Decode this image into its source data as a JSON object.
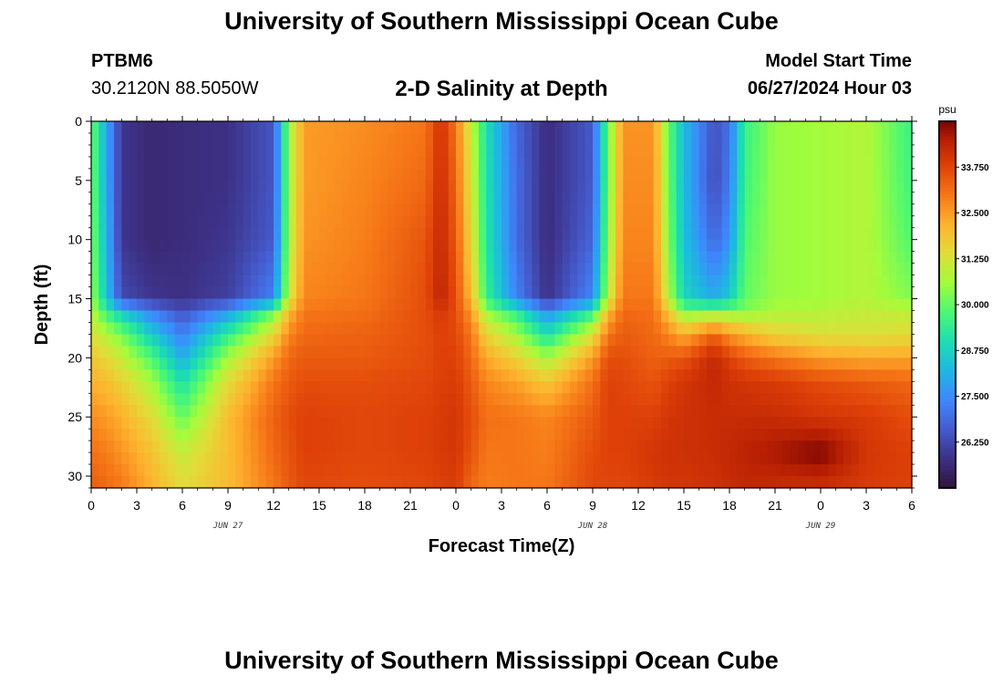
{
  "header": {
    "title": "University of Southern Mississippi Ocean Cube",
    "station_id": "PTBM6",
    "station_coords": "30.2120N  88.5050W",
    "chart_title": "2-D Salinity at Depth",
    "start_label": "Model Start Time",
    "start_value": "06/27/2024 Hour 03"
  },
  "footer": {
    "title": "University of Southern Mississippi Ocean Cube"
  },
  "chart_data": {
    "type": "heatmap",
    "title": "2-D Salinity at Depth",
    "xlabel": "Forecast Time(Z)",
    "ylabel": "Depth (ft)",
    "x_tick_labels": [
      "0",
      "3",
      "6",
      "9",
      "12",
      "15",
      "18",
      "21",
      "0",
      "3",
      "6",
      "9",
      "12",
      "15",
      "18",
      "21",
      "0",
      "3",
      "6"
    ],
    "x_date_labels": [
      {
        "label": "JUN 27",
        "at_hour": 9
      },
      {
        "label": "JUN 28",
        "at_hour": 33
      },
      {
        "label": "JUN 29",
        "at_hour": 48
      }
    ],
    "x_range_hours": [
      0,
      54
    ],
    "y_ticks": [
      0,
      5,
      10,
      15,
      20,
      25,
      30
    ],
    "y_range_ft": [
      0,
      31
    ],
    "y_inverted": true,
    "colorbar": {
      "unit": "psu",
      "min": 25.0,
      "max": 35.0,
      "tick_values": [
        26.25,
        27.5,
        28.75,
        30.0,
        31.25,
        32.5,
        33.75
      ],
      "tick_labels": [
        "26.250",
        "27.500",
        "28.750",
        "30.000",
        "31.250",
        "32.500",
        "33.750"
      ]
    },
    "salinity_profiles": {
      "depths_ft": [
        0,
        5,
        10,
        15,
        16,
        18,
        20,
        22,
        25,
        28,
        31
      ],
      "keyframes": [
        {
          "hour": 0,
          "values": [
            30.2,
            30.3,
            30.4,
            30.6,
            30.9,
            31.3,
            31.8,
            32.2,
            32.7,
            33.1,
            33.4
          ]
        },
        {
          "hour": 1,
          "values": [
            28.0,
            28.0,
            28.2,
            28.5,
            29.5,
            30.8,
            31.5,
            32.0,
            32.5,
            32.9,
            33.2
          ]
        },
        {
          "hour": 2,
          "values": [
            25.9,
            25.9,
            25.9,
            26.3,
            28.5,
            30.2,
            31.0,
            31.6,
            32.2,
            32.6,
            33.0
          ]
        },
        {
          "hour": 4,
          "values": [
            25.6,
            25.6,
            25.6,
            25.9,
            27.2,
            28.6,
            29.8,
            30.6,
            31.4,
            31.9,
            32.2
          ]
        },
        {
          "hour": 6,
          "values": [
            25.7,
            25.7,
            25.7,
            25.8,
            26.4,
            27.2,
            28.0,
            29.0,
            30.0,
            31.0,
            31.4
          ]
        },
        {
          "hour": 9,
          "values": [
            25.8,
            25.8,
            25.9,
            26.1,
            27.6,
            29.4,
            30.6,
            31.4,
            32.0,
            32.0,
            32.0
          ]
        },
        {
          "hour": 12,
          "values": [
            26.5,
            26.5,
            26.6,
            27.3,
            30.0,
            31.5,
            32.5,
            33.0,
            33.3,
            33.2,
            33.0
          ]
        },
        {
          "hour": 13,
          "values": [
            30.5,
            30.5,
            30.6,
            31.0,
            32.0,
            32.8,
            33.2,
            33.4,
            33.6,
            33.5,
            33.4
          ]
        },
        {
          "hour": 14,
          "values": [
            32.5,
            32.5,
            32.6,
            32.8,
            33.0,
            33.2,
            33.4,
            33.6,
            33.8,
            33.8,
            33.7
          ]
        },
        {
          "hour": 18,
          "values": [
            32.7,
            32.8,
            32.9,
            33.0,
            33.1,
            33.3,
            33.4,
            33.6,
            33.7,
            33.7,
            33.6
          ]
        },
        {
          "hour": 22,
          "values": [
            33.0,
            33.2,
            33.5,
            33.6,
            33.6,
            33.6,
            33.6,
            33.7,
            33.8,
            33.8,
            33.7
          ]
        },
        {
          "hour": 23,
          "values": [
            34.1,
            34.2,
            34.3,
            34.4,
            34.0,
            33.8,
            33.8,
            33.8,
            33.9,
            33.9,
            33.8
          ]
        },
        {
          "hour": 24,
          "values": [
            33.0,
            33.2,
            33.4,
            33.6,
            33.6,
            33.7,
            33.8,
            33.9,
            34.0,
            34.0,
            33.9
          ]
        },
        {
          "hour": 25,
          "values": [
            31.0,
            31.2,
            31.5,
            32.0,
            32.5,
            33.0,
            33.2,
            33.4,
            33.6,
            33.5,
            33.2
          ]
        },
        {
          "hour": 26,
          "values": [
            29.0,
            29.1,
            29.2,
            29.5,
            30.5,
            31.6,
            32.3,
            32.8,
            33.1,
            33.0,
            32.9
          ]
        },
        {
          "hour": 28,
          "values": [
            26.8,
            26.9,
            26.9,
            27.3,
            29.3,
            30.6,
            31.6,
            32.4,
            33.0,
            33.0,
            33.0
          ]
        },
        {
          "hour": 30,
          "values": [
            25.7,
            25.7,
            25.7,
            25.8,
            27.4,
            29.0,
            30.6,
            31.8,
            32.8,
            32.9,
            33.0
          ]
        },
        {
          "hour": 33,
          "values": [
            26.6,
            26.6,
            26.8,
            27.4,
            29.3,
            31.3,
            32.5,
            33.1,
            33.4,
            33.6,
            33.7
          ]
        },
        {
          "hour": 34,
          "values": [
            30.0,
            30.0,
            30.3,
            30.8,
            32.0,
            33.0,
            33.6,
            33.8,
            33.8,
            33.8,
            33.7
          ]
        },
        {
          "hour": 35,
          "values": [
            32.6,
            32.7,
            32.8,
            33.0,
            33.2,
            33.4,
            33.6,
            33.7,
            33.8,
            33.8,
            33.7
          ]
        },
        {
          "hour": 37,
          "values": [
            32.6,
            32.7,
            32.8,
            33.0,
            33.1,
            33.2,
            33.3,
            33.5,
            33.8,
            34.0,
            33.9
          ]
        },
        {
          "hour": 38,
          "values": [
            30.0,
            30.1,
            30.3,
            30.8,
            31.8,
            32.8,
            33.4,
            33.8,
            34.0,
            34.1,
            34.0
          ]
        },
        {
          "hour": 39,
          "values": [
            28.3,
            28.3,
            28.4,
            28.8,
            30.2,
            32.2,
            33.5,
            34.0,
            34.1,
            34.1,
            34.0
          ]
        },
        {
          "hour": 41,
          "values": [
            26.4,
            26.3,
            26.8,
            28.0,
            30.3,
            33.3,
            34.3,
            34.3,
            34.2,
            34.2,
            34.1
          ]
        },
        {
          "hour": 42,
          "values": [
            27.0,
            27.2,
            27.6,
            28.6,
            30.3,
            32.6,
            33.8,
            34.1,
            34.2,
            34.3,
            34.2
          ]
        },
        {
          "hour": 43,
          "values": [
            29.5,
            29.6,
            29.8,
            30.0,
            30.3,
            32.2,
            33.4,
            34.0,
            34.2,
            34.4,
            34.3
          ]
        },
        {
          "hour": 45,
          "values": [
            30.5,
            30.5,
            30.5,
            30.5,
            30.7,
            31.6,
            33.0,
            33.9,
            34.2,
            34.6,
            34.2
          ]
        },
        {
          "hour": 48,
          "values": [
            30.6,
            30.6,
            30.6,
            30.6,
            30.8,
            31.3,
            32.5,
            33.6,
            34.0,
            35.0,
            34.1
          ]
        },
        {
          "hour": 51,
          "values": [
            30.8,
            30.8,
            30.8,
            30.8,
            31.0,
            31.3,
            32.3,
            33.4,
            33.9,
            34.0,
            33.9
          ]
        },
        {
          "hour": 54,
          "values": [
            29.5,
            29.6,
            29.8,
            30.3,
            30.9,
            31.4,
            32.4,
            33.2,
            33.6,
            33.8,
            33.8
          ]
        }
      ]
    },
    "grid": false,
    "legend": "colorbar-right"
  }
}
